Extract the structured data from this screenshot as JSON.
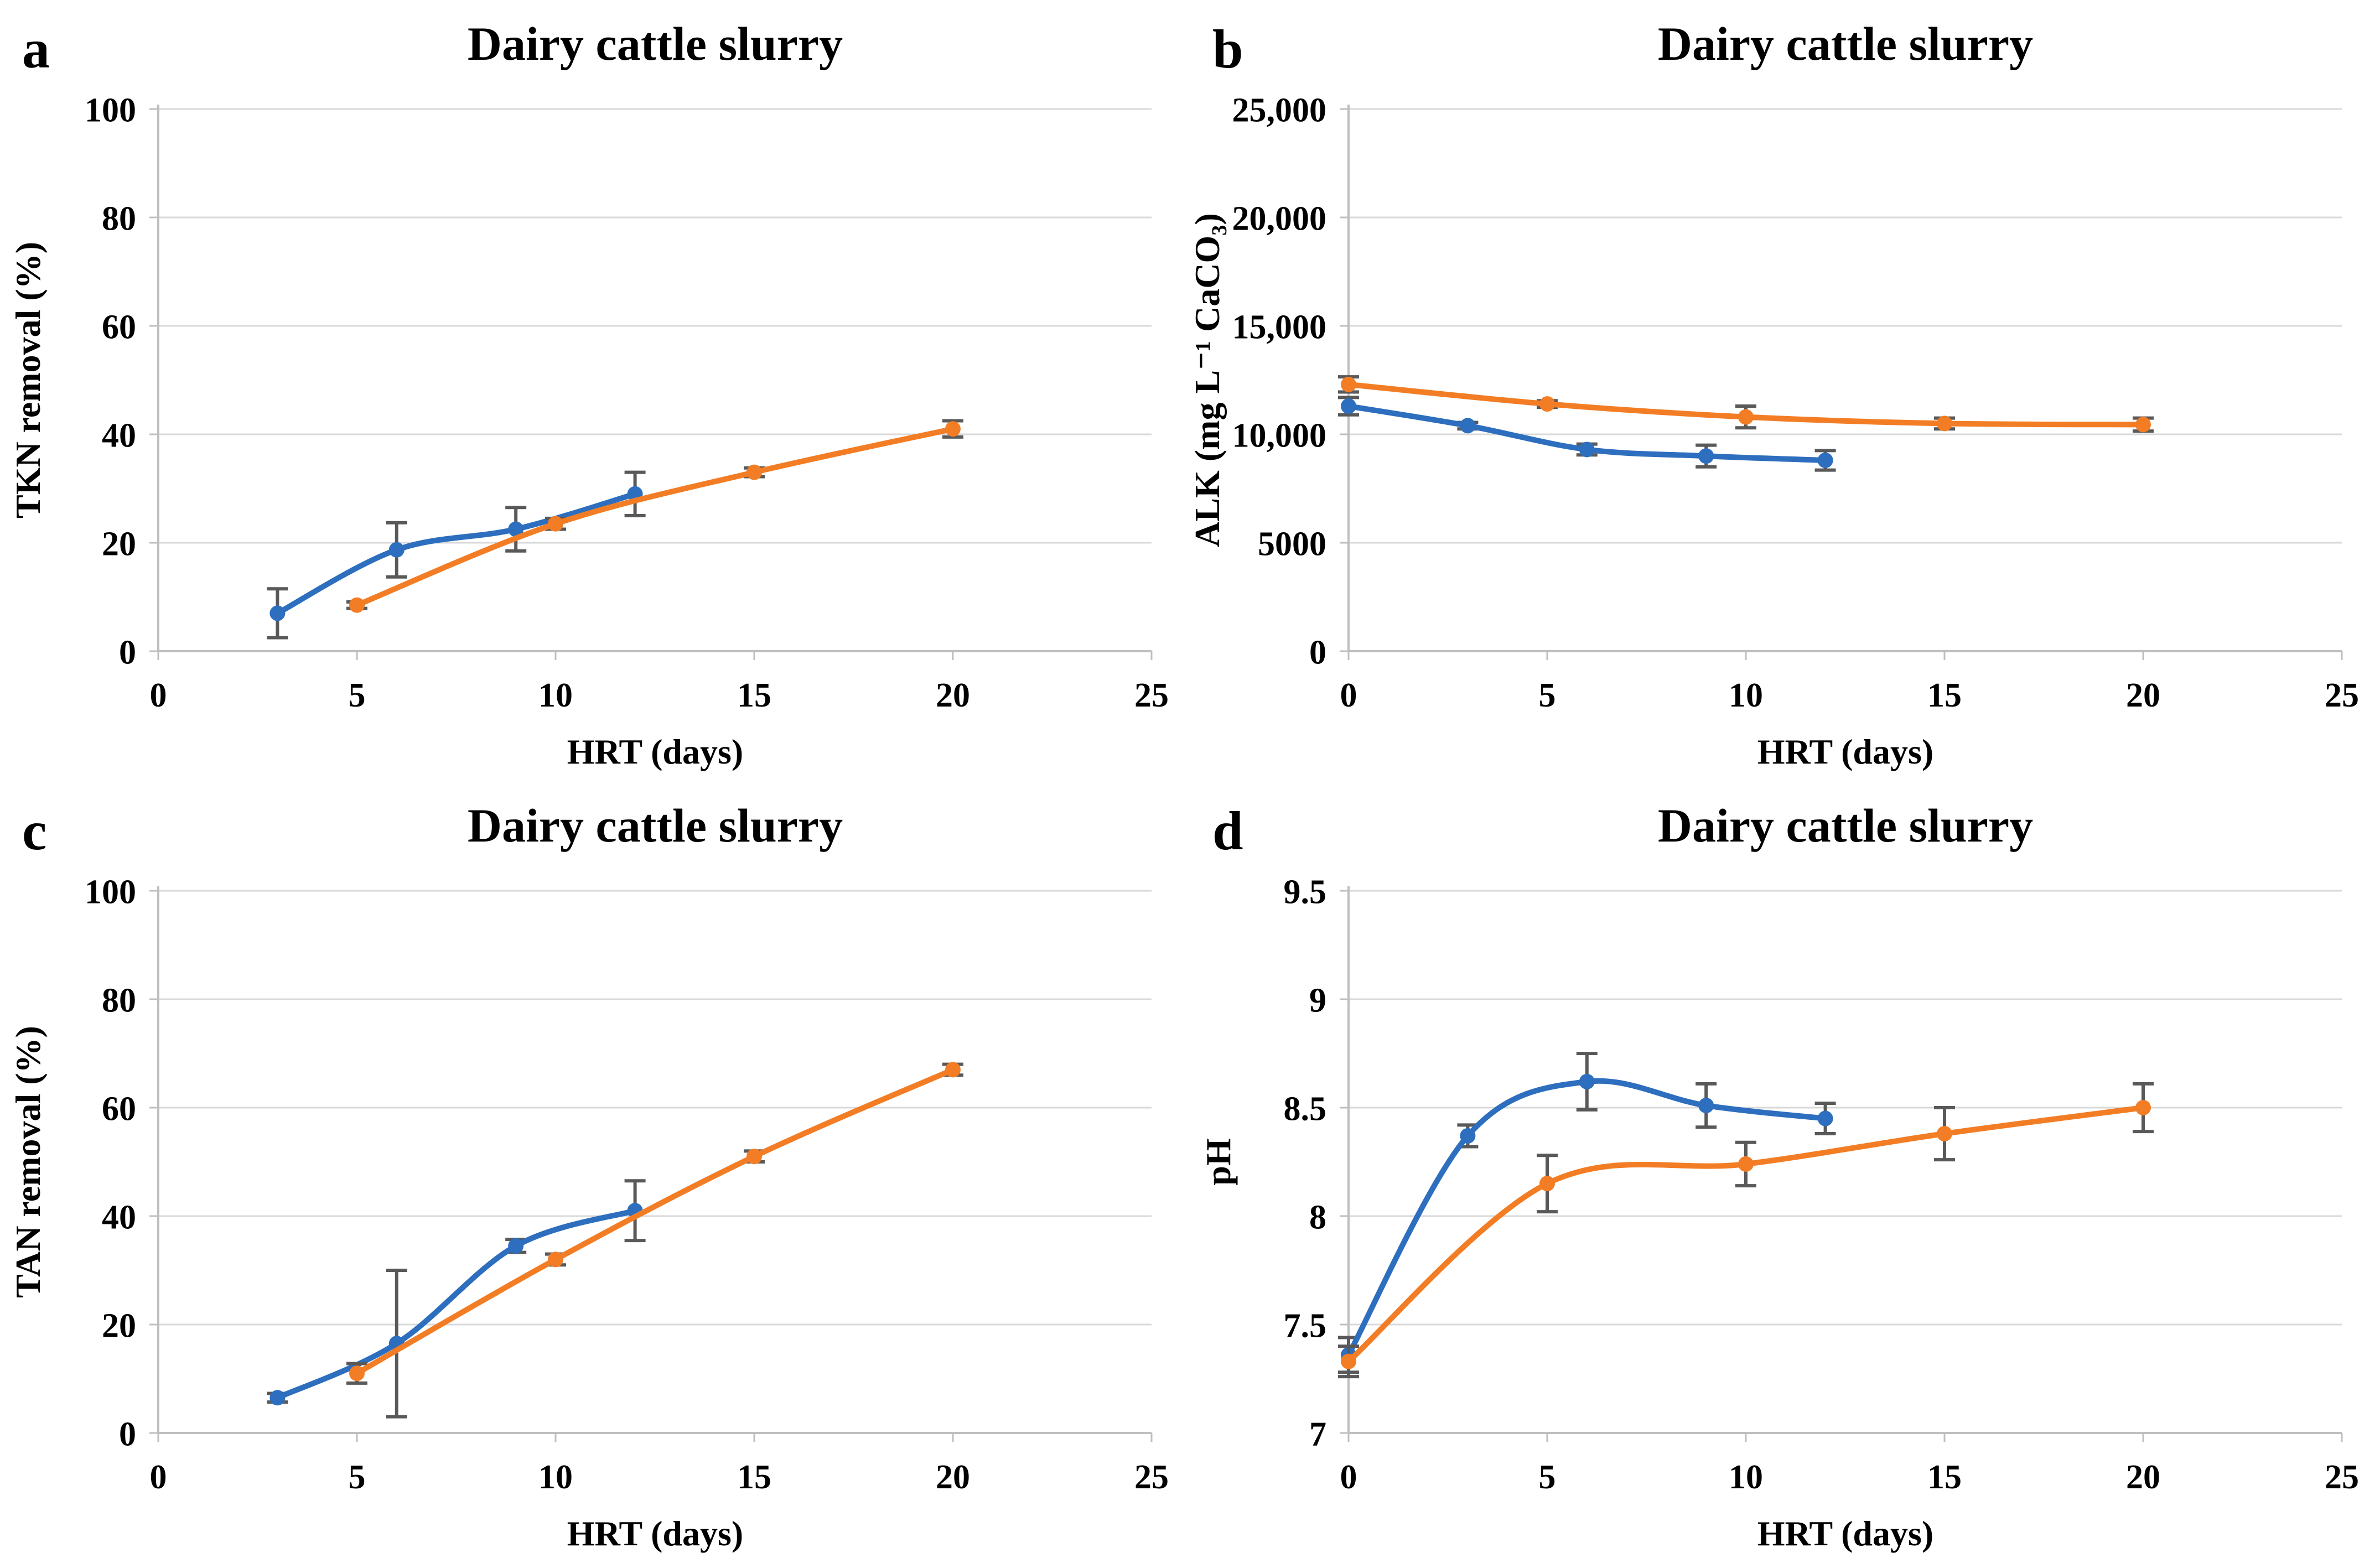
{
  "figure": {
    "background": "#ffffff",
    "panel_count": 4
  },
  "style": {
    "series_blue": "#2D6EBE",
    "series_orange": "#F37D25",
    "gridline_color": "#D9D9D9",
    "axis_color": "#BFBFBF",
    "error_bar_color": "#595959",
    "text_color": "#000000"
  },
  "chart_data": [
    {
      "id": "a",
      "type": "line",
      "letter": "a",
      "title": "Dairy cattle slurry",
      "xlabel": "HRT (days)",
      "ylabel": "TKN removal (%)",
      "xlim": [
        0,
        25
      ],
      "ylim": [
        0,
        100
      ],
      "xtick_values": [
        0,
        5,
        10,
        15,
        20,
        25
      ],
      "xticks": [
        "0",
        "5",
        "10",
        "15",
        "20",
        "25"
      ],
      "ytick_values": [
        0,
        20,
        40,
        60,
        80,
        100
      ],
      "yticks": [
        "0",
        "20",
        "40",
        "60",
        "80",
        "100"
      ],
      "grid": true,
      "legend": null,
      "marker": "circle",
      "smooth": true,
      "series": [
        {
          "name": "blue",
          "color": "#2D6EBE",
          "x": [
            3,
            6,
            9,
            12
          ],
          "y": [
            7,
            18.7,
            22.5,
            29
          ],
          "err": [
            4.5,
            5,
            4,
            4
          ]
        },
        {
          "name": "orange",
          "color": "#F37D25",
          "x": [
            5,
            10,
            15,
            20
          ],
          "y": [
            8.5,
            23.5,
            33,
            41
          ],
          "err": [
            0.6,
            1,
            0.8,
            1.5
          ]
        }
      ]
    },
    {
      "id": "b",
      "type": "line",
      "letter": "b",
      "title": "Dairy cattle slurry",
      "xlabel": "HRT (days)",
      "ylabel": "ALK (mg L⁻¹ CaCO₃)",
      "xlim": [
        0,
        25
      ],
      "ylim": [
        0,
        25000
      ],
      "xtick_values": [
        0,
        5,
        10,
        15,
        20,
        25
      ],
      "xticks": [
        "0",
        "5",
        "10",
        "15",
        "20",
        "25"
      ],
      "ytick_values": [
        0,
        5000,
        10000,
        15000,
        20000,
        25000
      ],
      "yticks": [
        "0",
        "5000",
        "10,000",
        "15,000",
        "20,000",
        "25,000"
      ],
      "grid": true,
      "legend": null,
      "marker": "circle",
      "smooth": true,
      "series": [
        {
          "name": "blue",
          "color": "#2D6EBE",
          "x": [
            0,
            3,
            6,
            9,
            12
          ],
          "y": [
            11300,
            10400,
            9300,
            9000,
            8800
          ],
          "err": [
            400,
            150,
            250,
            500,
            450
          ]
        },
        {
          "name": "orange",
          "color": "#F37D25",
          "x": [
            0,
            5,
            10,
            15,
            20
          ],
          "y": [
            12300,
            11400,
            10800,
            10500,
            10450
          ],
          "err": [
            350,
            150,
            500,
            250,
            300
          ]
        }
      ]
    },
    {
      "id": "c",
      "type": "line",
      "letter": "c",
      "title": "Dairy cattle slurry",
      "xlabel": "HRT (days)",
      "ylabel": "TAN removal (%)",
      "xlim": [
        0,
        25
      ],
      "ylim": [
        0,
        100
      ],
      "xtick_values": [
        0,
        5,
        10,
        15,
        20,
        25
      ],
      "xticks": [
        "0",
        "5",
        "10",
        "15",
        "20",
        "25"
      ],
      "ytick_values": [
        0,
        20,
        40,
        60,
        80,
        100
      ],
      "yticks": [
        "0",
        "20",
        "40",
        "60",
        "80",
        "100"
      ],
      "grid": true,
      "legend": null,
      "marker": "circle",
      "smooth": true,
      "series": [
        {
          "name": "blue",
          "color": "#2D6EBE",
          "x": [
            3,
            6,
            9,
            12
          ],
          "y": [
            6.5,
            16.5,
            34.5,
            41
          ],
          "err": [
            0.8,
            13.5,
            1.2,
            5.5
          ]
        },
        {
          "name": "orange",
          "color": "#F37D25",
          "x": [
            5,
            10,
            15,
            20
          ],
          "y": [
            11,
            32,
            51,
            67
          ],
          "err": [
            1.8,
            1,
            1,
            1
          ]
        }
      ]
    },
    {
      "id": "d",
      "type": "line",
      "letter": "d",
      "title": "Dairy cattle slurry",
      "xlabel": "HRT (days)",
      "ylabel": "pH",
      "xlim": [
        0,
        25
      ],
      "ylim": [
        7,
        9.5
      ],
      "xtick_values": [
        0,
        5,
        10,
        15,
        20,
        25
      ],
      "xticks": [
        "0",
        "5",
        "10",
        "15",
        "20",
        "25"
      ],
      "ytick_values": [
        7,
        7.5,
        8,
        8.5,
        9,
        9.5
      ],
      "yticks": [
        "7",
        "7.5",
        "8",
        "8.5",
        "9",
        "9.5"
      ],
      "grid": true,
      "legend": null,
      "marker": "circle",
      "smooth": true,
      "series": [
        {
          "name": "blue",
          "color": "#2D6EBE",
          "x": [
            0,
            3,
            6,
            9,
            12
          ],
          "y": [
            7.36,
            8.37,
            8.62,
            8.51,
            8.45
          ],
          "err": [
            0.08,
            0.05,
            0.13,
            0.1,
            0.07
          ]
        },
        {
          "name": "orange",
          "color": "#F37D25",
          "x": [
            0,
            5,
            10,
            15,
            20
          ],
          "y": [
            7.33,
            8.15,
            8.24,
            8.38,
            8.5
          ],
          "err": [
            0.07,
            0.13,
            0.1,
            0.12,
            0.11
          ]
        }
      ]
    }
  ]
}
